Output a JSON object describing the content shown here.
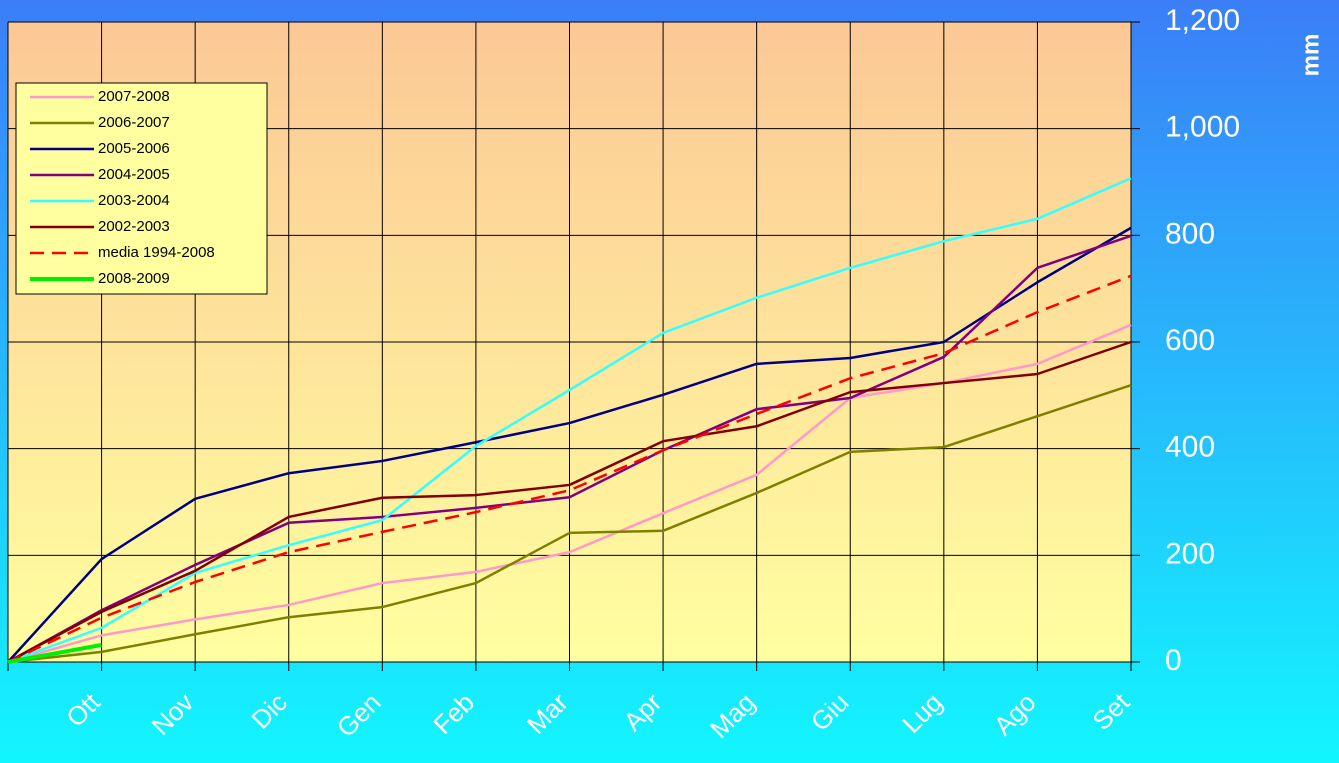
{
  "chart_data": {
    "type": "line",
    "y_label": "mm",
    "categories": [
      null,
      "Ott",
      "Nov",
      "Dic",
      "Gen",
      "Feb",
      "Mar",
      "Apr",
      "Mag",
      "Giu",
      "Lug",
      "Ago",
      "Set"
    ],
    "ylim": [
      0,
      1200
    ],
    "yticks": [
      0,
      200,
      400,
      600,
      800,
      {
        "value": 1000,
        "label": "1,000"
      },
      {
        "value": 1200,
        "label": "1,200"
      }
    ],
    "grid": true,
    "legend": "upper left",
    "series": [
      {
        "name": "2007-2008",
        "color": "#ff99cc",
        "values": [
          0,
          50,
          80,
          107,
          148,
          169,
          206,
          279,
          351,
          495,
          523,
          559,
          632
        ]
      },
      {
        "name": "2006-2007",
        "color": "#808000",
        "values": [
          0,
          19,
          52,
          84,
          103,
          148,
          242,
          246,
          317,
          394,
          403,
          461,
          519
        ]
      },
      {
        "name": "2005-2006",
        "color": "#000080",
        "values": [
          0,
          193,
          306,
          354,
          377,
          412,
          448,
          501,
          559,
          570,
          600,
          712,
          814
        ]
      },
      {
        "name": "2004-2005",
        "color": "#800080",
        "values": [
          0,
          97,
          182,
          261,
          272,
          289,
          309,
          397,
          474,
          495,
          572,
          739,
          799
        ]
      },
      {
        "name": "2003-2004",
        "color": "#33ffff",
        "values": [
          0,
          64,
          167,
          219,
          266,
          405,
          510,
          617,
          683,
          739,
          789,
          831,
          907
        ]
      },
      {
        "name": "2002-2003",
        "color": "#800000",
        "values": [
          0,
          94,
          171,
          272,
          308,
          313,
          332,
          414,
          442,
          506,
          523,
          540,
          600
        ]
      },
      {
        "name": "media 1994-2008",
        "color": "#ff0000",
        "style": "dashed",
        "values": [
          0,
          83,
          150,
          206,
          244,
          281,
          322,
          397,
          465,
          532,
          579,
          656,
          724
        ]
      },
      {
        "name": "2008-2009",
        "color": "#00ee00",
        "line_width": 4,
        "values": [
          0,
          32,
          null,
          null,
          null,
          null,
          null,
          null,
          null,
          null,
          null,
          null,
          null
        ]
      }
    ]
  }
}
